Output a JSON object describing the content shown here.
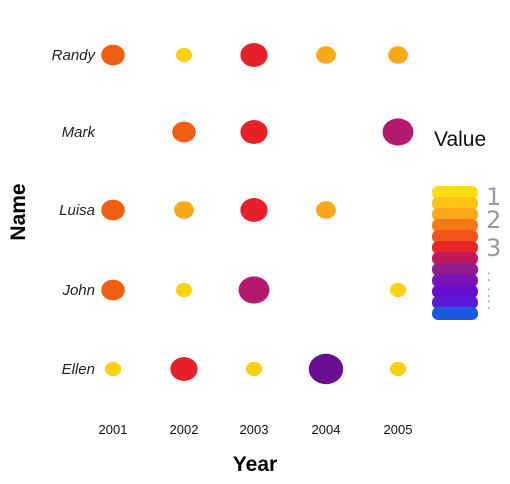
{
  "chart_data": {
    "type": "scatter",
    "xlabel": "Year",
    "ylabel": "Name",
    "legend_title": "Value",
    "legend_labels": [
      "1",
      "2",
      "3",
      ":",
      ":",
      ":"
    ],
    "x_categories": [
      "2001",
      "2002",
      "2003",
      "2004",
      "2005"
    ],
    "y_categories": [
      "Randy",
      "Mark",
      "Luisa",
      "John",
      "Ellen"
    ],
    "points": [
      {
        "name": "Randy",
        "year": "2001",
        "value": 3,
        "color": "#f25f12"
      },
      {
        "name": "Randy",
        "year": "2002",
        "value": 1,
        "color": "#fcd20e"
      },
      {
        "name": "Randy",
        "year": "2003",
        "value": 4,
        "color": "#e8202a"
      },
      {
        "name": "Randy",
        "year": "2004",
        "value": 2,
        "color": "#f9a81a"
      },
      {
        "name": "Randy",
        "year": "2005",
        "value": 2,
        "color": "#f9a81a"
      },
      {
        "name": "Mark",
        "year": "2002",
        "value": 3,
        "color": "#f25f12"
      },
      {
        "name": "Mark",
        "year": "2003",
        "value": 4,
        "color": "#e8202a"
      },
      {
        "name": "Mark",
        "year": "2005",
        "value": 5,
        "color": "#b5196e"
      },
      {
        "name": "Luisa",
        "year": "2001",
        "value": 3,
        "color": "#f25f12"
      },
      {
        "name": "Luisa",
        "year": "2002",
        "value": 2,
        "color": "#f9a81a"
      },
      {
        "name": "Luisa",
        "year": "2003",
        "value": 4,
        "color": "#e8202a"
      },
      {
        "name": "Luisa",
        "year": "2004",
        "value": 2,
        "color": "#f9a81a"
      },
      {
        "name": "John",
        "year": "2001",
        "value": 3,
        "color": "#f25f12"
      },
      {
        "name": "John",
        "year": "2002",
        "value": 1,
        "color": "#fcd20e"
      },
      {
        "name": "John",
        "year": "2003",
        "value": 5,
        "color": "#b5196e"
      },
      {
        "name": "John",
        "year": "2005",
        "value": 1,
        "color": "#fcd20e"
      },
      {
        "name": "Ellen",
        "year": "2001",
        "value": 1,
        "color": "#fcd20e"
      },
      {
        "name": "Ellen",
        "year": "2002",
        "value": 4,
        "color": "#e8202a"
      },
      {
        "name": "Ellen",
        "year": "2003",
        "value": 1,
        "color": "#fcd20e"
      },
      {
        "name": "Ellen",
        "year": "2004",
        "value": 6,
        "color": "#6a0f93"
      },
      {
        "name": "Ellen",
        "year": "2005",
        "value": 1,
        "color": "#fcd20e"
      }
    ],
    "legend_colors": [
      "#fcdf0a",
      "#fdc312",
      "#fba81a",
      "#f57a16",
      "#f2551b",
      "#e82527",
      "#c2185a",
      "#931b8c",
      "#7a12b4",
      "#6a0fd0",
      "#5a1ad8",
      "#1c59e2"
    ],
    "grid": false,
    "legend_position": "right"
  }
}
